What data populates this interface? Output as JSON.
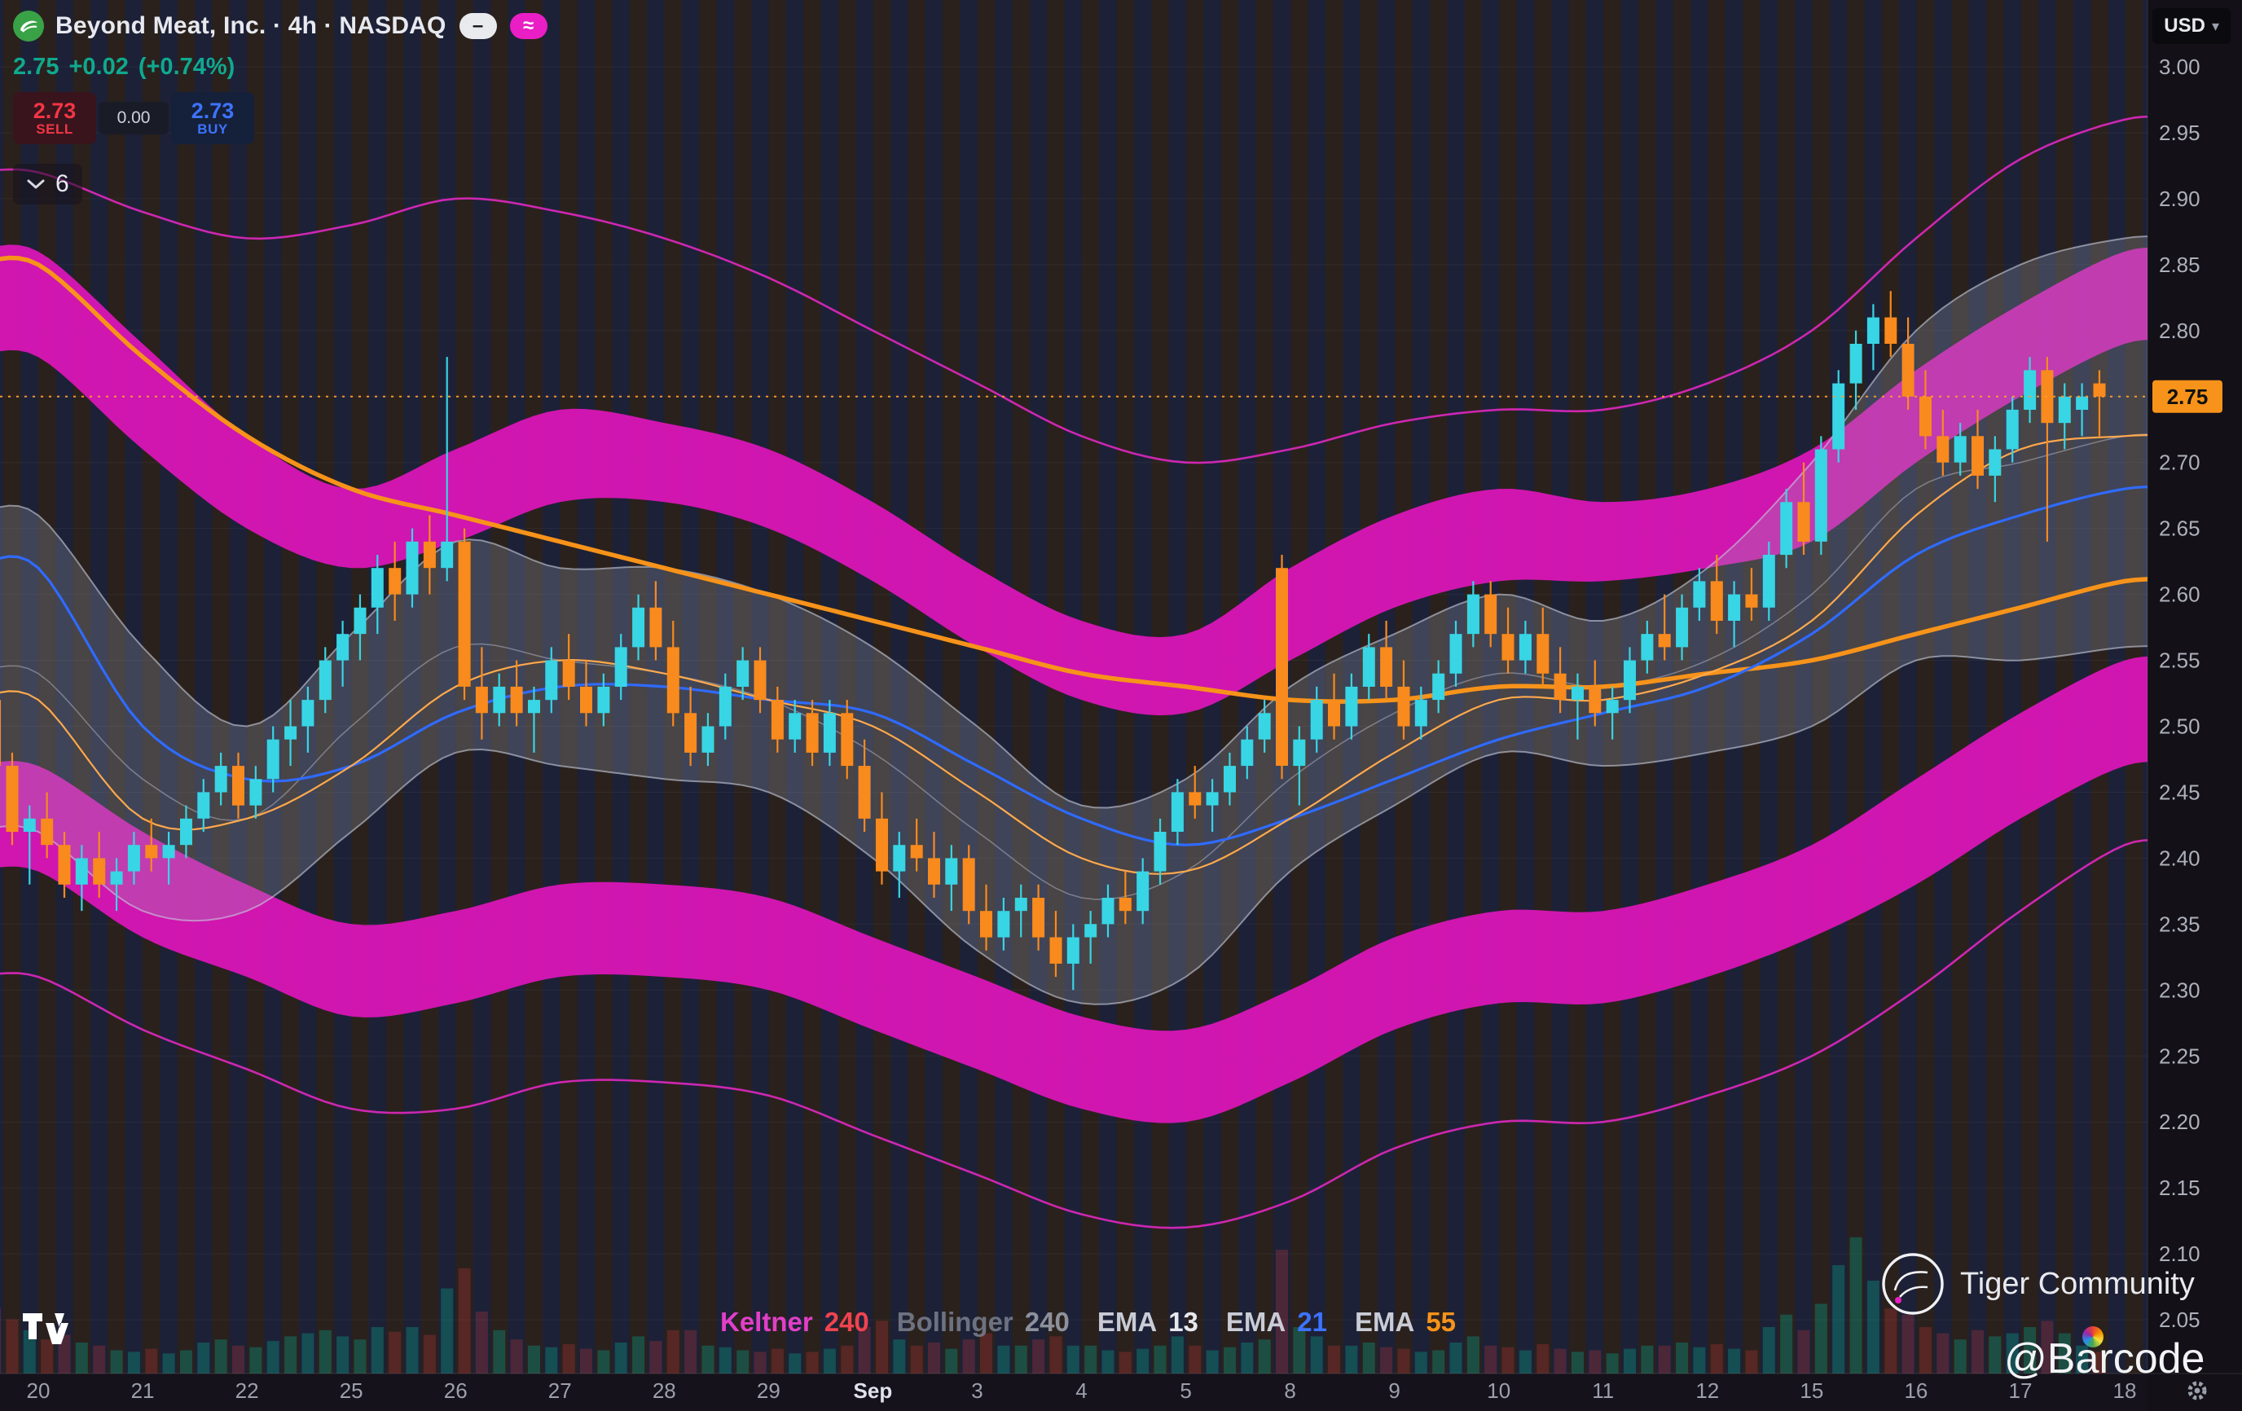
{
  "header": {
    "symbol_title": "Beyond Meat, Inc. · 4h · NASDAQ",
    "toggle_minus": "–",
    "toggle_wave": "≈",
    "price": "2.75",
    "change": "+0.02",
    "change_pct": "(+0.74%)",
    "sell_price": "2.73",
    "sell_label": "SELL",
    "spread": "0.00",
    "buy_price": "2.73",
    "buy_label": "BUY",
    "collapse_count": "6"
  },
  "axis": {
    "currency": "USD",
    "caret": "▾",
    "last_price_label": "2.75"
  },
  "legend": {
    "items": [
      {
        "label": "Keltner",
        "value": "240",
        "label_color": "#e23fc8",
        "value_color": "#f0434f"
      },
      {
        "label": "Bollinger",
        "value": "240",
        "label_color": "#6e7280",
        "value_color": "#8d919c"
      },
      {
        "label": "EMA",
        "value": "13",
        "label_color": "#c9ccd6",
        "value_color": "#e6e8ee"
      },
      {
        "label": "EMA",
        "value": "21",
        "label_color": "#c9ccd6",
        "value_color": "#3d73ff"
      },
      {
        "label": "EMA",
        "value": "55",
        "label_color": "#c9ccd6",
        "value_color": "#f7931a"
      }
    ]
  },
  "watermarks": {
    "community": "Tiger Community",
    "handle": "@Barcode"
  },
  "chart_data": {
    "type": "candlestick",
    "title": "Beyond Meat, Inc.",
    "interval": "4h",
    "exchange": "NASDAQ",
    "currency": "USD",
    "last_price": 2.75,
    "change": 0.02,
    "change_pct": 0.74,
    "current_price_line": 2.75,
    "ylim": [
      2.03,
      3.02
    ],
    "price_ticks": [
      "3.00",
      "2.95",
      "2.90",
      "2.85",
      "2.80",
      "2.75",
      "2.70",
      "2.65",
      "2.60",
      "2.55",
      "2.50",
      "2.45",
      "2.40",
      "2.35",
      "2.30",
      "2.25",
      "2.20",
      "2.15",
      "2.10",
      "2.05"
    ],
    "days": [
      "20",
      "21",
      "22",
      "25",
      "26",
      "27",
      "28",
      "29",
      "Sep",
      "3",
      "4",
      "5",
      "8",
      "9",
      "10",
      "11",
      "12",
      "15",
      "16",
      "17",
      "18"
    ],
    "bars_per_day": 6,
    "candles": [
      [
        2.52,
        2.53,
        2.46,
        2.47
      ],
      [
        2.47,
        2.48,
        2.41,
        2.42
      ],
      [
        2.42,
        2.44,
        2.38,
        2.43
      ],
      [
        2.43,
        2.45,
        2.4,
        2.41
      ],
      [
        2.41,
        2.42,
        2.37,
        2.38
      ],
      [
        2.38,
        2.41,
        2.36,
        2.4
      ],
      [
        2.4,
        2.42,
        2.37,
        2.38
      ],
      [
        2.38,
        2.4,
        2.36,
        2.39
      ],
      [
        2.39,
        2.42,
        2.38,
        2.41
      ],
      [
        2.41,
        2.43,
        2.39,
        2.4
      ],
      [
        2.4,
        2.42,
        2.38,
        2.41
      ],
      [
        2.41,
        2.44,
        2.4,
        2.43
      ],
      [
        2.43,
        2.46,
        2.42,
        2.45
      ],
      [
        2.45,
        2.48,
        2.44,
        2.47
      ],
      [
        2.47,
        2.48,
        2.43,
        2.44
      ],
      [
        2.44,
        2.47,
        2.43,
        2.46
      ],
      [
        2.46,
        2.5,
        2.45,
        2.49
      ],
      [
        2.49,
        2.52,
        2.47,
        2.5
      ],
      [
        2.5,
        2.53,
        2.48,
        2.52
      ],
      [
        2.52,
        2.56,
        2.51,
        2.55
      ],
      [
        2.55,
        2.58,
        2.53,
        2.57
      ],
      [
        2.57,
        2.6,
        2.55,
        2.59
      ],
      [
        2.59,
        2.63,
        2.57,
        2.62
      ],
      [
        2.62,
        2.64,
        2.58,
        2.6
      ],
      [
        2.6,
        2.65,
        2.59,
        2.64
      ],
      [
        2.64,
        2.66,
        2.6,
        2.62
      ],
      [
        2.62,
        2.78,
        2.61,
        2.64
      ],
      [
        2.64,
        2.65,
        2.52,
        2.53
      ],
      [
        2.53,
        2.56,
        2.49,
        2.51
      ],
      [
        2.51,
        2.54,
        2.5,
        2.53
      ],
      [
        2.53,
        2.55,
        2.5,
        2.51
      ],
      [
        2.51,
        2.53,
        2.48,
        2.52
      ],
      [
        2.52,
        2.56,
        2.51,
        2.55
      ],
      [
        2.55,
        2.57,
        2.52,
        2.53
      ],
      [
        2.53,
        2.55,
        2.5,
        2.51
      ],
      [
        2.51,
        2.54,
        2.5,
        2.53
      ],
      [
        2.53,
        2.57,
        2.52,
        2.56
      ],
      [
        2.56,
        2.6,
        2.55,
        2.59
      ],
      [
        2.59,
        2.61,
        2.55,
        2.56
      ],
      [
        2.56,
        2.58,
        2.5,
        2.51
      ],
      [
        2.51,
        2.53,
        2.47,
        2.48
      ],
      [
        2.48,
        2.51,
        2.47,
        2.5
      ],
      [
        2.5,
        2.54,
        2.49,
        2.53
      ],
      [
        2.53,
        2.56,
        2.52,
        2.55
      ],
      [
        2.55,
        2.56,
        2.51,
        2.52
      ],
      [
        2.52,
        2.53,
        2.48,
        2.49
      ],
      [
        2.49,
        2.52,
        2.48,
        2.51
      ],
      [
        2.51,
        2.52,
        2.47,
        2.48
      ],
      [
        2.48,
        2.52,
        2.47,
        2.51
      ],
      [
        2.51,
        2.52,
        2.46,
        2.47
      ],
      [
        2.47,
        2.49,
        2.42,
        2.43
      ],
      [
        2.43,
        2.45,
        2.38,
        2.39
      ],
      [
        2.39,
        2.42,
        2.37,
        2.41
      ],
      [
        2.41,
        2.43,
        2.39,
        2.4
      ],
      [
        2.4,
        2.42,
        2.37,
        2.38
      ],
      [
        2.38,
        2.41,
        2.36,
        2.4
      ],
      [
        2.4,
        2.41,
        2.35,
        2.36
      ],
      [
        2.36,
        2.38,
        2.33,
        2.34
      ],
      [
        2.34,
        2.37,
        2.33,
        2.36
      ],
      [
        2.36,
        2.38,
        2.34,
        2.37
      ],
      [
        2.37,
        2.38,
        2.33,
        2.34
      ],
      [
        2.34,
        2.36,
        2.31,
        2.32
      ],
      [
        2.32,
        2.35,
        2.3,
        2.34
      ],
      [
        2.34,
        2.36,
        2.32,
        2.35
      ],
      [
        2.35,
        2.38,
        2.34,
        2.37
      ],
      [
        2.37,
        2.39,
        2.35,
        2.36
      ],
      [
        2.36,
        2.4,
        2.35,
        2.39
      ],
      [
        2.39,
        2.43,
        2.38,
        2.42
      ],
      [
        2.42,
        2.46,
        2.41,
        2.45
      ],
      [
        2.45,
        2.47,
        2.43,
        2.44
      ],
      [
        2.44,
        2.46,
        2.42,
        2.45
      ],
      [
        2.45,
        2.48,
        2.44,
        2.47
      ],
      [
        2.47,
        2.5,
        2.46,
        2.49
      ],
      [
        2.49,
        2.52,
        2.48,
        2.51
      ],
      [
        2.62,
        2.63,
        2.46,
        2.47
      ],
      [
        2.47,
        2.5,
        2.44,
        2.49
      ],
      [
        2.49,
        2.53,
        2.48,
        2.52
      ],
      [
        2.52,
        2.54,
        2.49,
        2.5
      ],
      [
        2.5,
        2.54,
        2.49,
        2.53
      ],
      [
        2.53,
        2.57,
        2.52,
        2.56
      ],
      [
        2.56,
        2.58,
        2.52,
        2.53
      ],
      [
        2.53,
        2.55,
        2.49,
        2.5
      ],
      [
        2.5,
        2.53,
        2.49,
        2.52
      ],
      [
        2.52,
        2.55,
        2.51,
        2.54
      ],
      [
        2.54,
        2.58,
        2.53,
        2.57
      ],
      [
        2.57,
        2.61,
        2.56,
        2.6
      ],
      [
        2.6,
        2.61,
        2.56,
        2.57
      ],
      [
        2.57,
        2.59,
        2.54,
        2.55
      ],
      [
        2.55,
        2.58,
        2.54,
        2.57
      ],
      [
        2.57,
        2.59,
        2.53,
        2.54
      ],
      [
        2.54,
        2.56,
        2.51,
        2.52
      ],
      [
        2.52,
        2.54,
        2.49,
        2.53
      ],
      [
        2.53,
        2.55,
        2.5,
        2.51
      ],
      [
        2.51,
        2.53,
        2.49,
        2.52
      ],
      [
        2.52,
        2.56,
        2.51,
        2.55
      ],
      [
        2.55,
        2.58,
        2.54,
        2.57
      ],
      [
        2.57,
        2.6,
        2.55,
        2.56
      ],
      [
        2.56,
        2.6,
        2.55,
        2.59
      ],
      [
        2.59,
        2.62,
        2.58,
        2.61
      ],
      [
        2.61,
        2.63,
        2.57,
        2.58
      ],
      [
        2.58,
        2.61,
        2.56,
        2.6
      ],
      [
        2.6,
        2.62,
        2.58,
        2.59
      ],
      [
        2.59,
        2.64,
        2.58,
        2.63
      ],
      [
        2.63,
        2.68,
        2.62,
        2.67
      ],
      [
        2.67,
        2.7,
        2.63,
        2.64
      ],
      [
        2.64,
        2.72,
        2.63,
        2.71
      ],
      [
        2.71,
        2.77,
        2.7,
        2.76
      ],
      [
        2.76,
        2.8,
        2.74,
        2.79
      ],
      [
        2.79,
        2.82,
        2.77,
        2.81
      ],
      [
        2.81,
        2.83,
        2.78,
        2.79
      ],
      [
        2.79,
        2.81,
        2.74,
        2.75
      ],
      [
        2.75,
        2.77,
        2.71,
        2.72
      ],
      [
        2.72,
        2.74,
        2.69,
        2.7
      ],
      [
        2.7,
        2.73,
        2.69,
        2.72
      ],
      [
        2.72,
        2.74,
        2.68,
        2.69
      ],
      [
        2.69,
        2.72,
        2.67,
        2.71
      ],
      [
        2.71,
        2.75,
        2.7,
        2.74
      ],
      [
        2.74,
        2.78,
        2.73,
        2.77
      ],
      [
        2.77,
        2.78,
        2.64,
        2.73
      ],
      [
        2.73,
        2.76,
        2.71,
        2.75
      ],
      [
        2.74,
        2.76,
        2.72,
        2.75
      ],
      [
        2.76,
        2.77,
        2.72,
        2.75
      ]
    ],
    "volumes": [
      42,
      35,
      28,
      22,
      25,
      20,
      18,
      15,
      14,
      16,
      13,
      15,
      20,
      22,
      18,
      17,
      21,
      24,
      26,
      28,
      24,
      22,
      30,
      27,
      30,
      25,
      55,
      68,
      40,
      28,
      22,
      18,
      17,
      19,
      16,
      15,
      20,
      24,
      21,
      28,
      28,
      18,
      17,
      15,
      14,
      16,
      13,
      14,
      16,
      18,
      30,
      34,
      22,
      18,
      20,
      16,
      22,
      26,
      18,
      18,
      22,
      24,
      18,
      18,
      15,
      14,
      16,
      18,
      24,
      18,
      15,
      17,
      20,
      22,
      80,
      30,
      24,
      18,
      18,
      20,
      17,
      16,
      14,
      15,
      20,
      24,
      18,
      17,
      15,
      19,
      16,
      14,
      15,
      13,
      16,
      18,
      18,
      20,
      17,
      19,
      16,
      15,
      30,
      38,
      28,
      45,
      70,
      88,
      60,
      42,
      38,
      30,
      26,
      22,
      28,
      24,
      26,
      30,
      34,
      26,
      18,
      14
    ],
    "colors": {
      "up": "#38d5e4",
      "down": "#f98a1d",
      "keltner": "#d916b6",
      "keltner_line": "#e028c0",
      "bollinger_fill": "#9aa0b0",
      "ema13": "#ffa94d",
      "ema21": "#2f6bff",
      "ema55": "#f7931a",
      "price_line": "#ff9d2e"
    },
    "indicators": {
      "keltner_outer_upper": [
        2.92,
        2.89,
        2.87,
        2.88,
        2.9,
        2.89,
        2.87,
        2.84,
        2.8,
        2.76,
        2.72,
        2.7,
        2.71,
        2.73,
        2.74,
        2.74,
        2.76,
        2.8,
        2.87,
        2.93,
        2.96
      ],
      "keltner_upper_band_top": [
        2.86,
        2.79,
        2.72,
        2.68,
        2.71,
        2.74,
        2.73,
        2.71,
        2.67,
        2.62,
        2.58,
        2.57,
        2.62,
        2.66,
        2.68,
        2.67,
        2.68,
        2.71,
        2.77,
        2.82,
        2.86
      ],
      "keltner_upper_band_bot": [
        2.78,
        2.71,
        2.65,
        2.62,
        2.64,
        2.67,
        2.67,
        2.65,
        2.61,
        2.56,
        2.52,
        2.51,
        2.55,
        2.59,
        2.61,
        2.61,
        2.62,
        2.64,
        2.7,
        2.75,
        2.79
      ],
      "keltner_lower_band_top": [
        2.47,
        2.42,
        2.38,
        2.35,
        2.36,
        2.38,
        2.38,
        2.37,
        2.34,
        2.31,
        2.28,
        2.27,
        2.3,
        2.34,
        2.36,
        2.36,
        2.38,
        2.41,
        2.46,
        2.51,
        2.55
      ],
      "keltner_lower_band_bot": [
        2.39,
        2.34,
        2.31,
        2.28,
        2.29,
        2.31,
        2.31,
        2.3,
        2.27,
        2.24,
        2.21,
        2.2,
        2.23,
        2.27,
        2.29,
        2.29,
        2.31,
        2.34,
        2.38,
        2.43,
        2.47
      ],
      "keltner_outer_lower": [
        2.31,
        2.27,
        2.24,
        2.21,
        2.21,
        2.23,
        2.23,
        2.22,
        2.19,
        2.16,
        2.13,
        2.12,
        2.14,
        2.18,
        2.2,
        2.2,
        2.22,
        2.25,
        2.3,
        2.36,
        2.41
      ],
      "bollinger_upper": [
        2.66,
        2.56,
        2.5,
        2.57,
        2.64,
        2.62,
        2.62,
        2.6,
        2.56,
        2.5,
        2.44,
        2.46,
        2.53,
        2.57,
        2.6,
        2.58,
        2.62,
        2.7,
        2.8,
        2.85,
        2.87
      ],
      "bollinger_basis": [
        2.54,
        2.46,
        2.43,
        2.5,
        2.56,
        2.55,
        2.54,
        2.52,
        2.48,
        2.42,
        2.37,
        2.39,
        2.46,
        2.51,
        2.54,
        2.53,
        2.55,
        2.6,
        2.68,
        2.7,
        2.72
      ],
      "bollinger_lower": [
        2.42,
        2.36,
        2.36,
        2.42,
        2.48,
        2.47,
        2.46,
        2.45,
        2.4,
        2.33,
        2.29,
        2.31,
        2.39,
        2.44,
        2.48,
        2.47,
        2.48,
        2.5,
        2.55,
        2.55,
        2.56
      ],
      "ema13": [
        2.52,
        2.43,
        2.43,
        2.47,
        2.53,
        2.55,
        2.54,
        2.52,
        2.5,
        2.45,
        2.4,
        2.39,
        2.43,
        2.48,
        2.52,
        2.52,
        2.54,
        2.58,
        2.66,
        2.71,
        2.72
      ],
      "ema21": [
        2.62,
        2.5,
        2.46,
        2.47,
        2.51,
        2.53,
        2.53,
        2.52,
        2.51,
        2.47,
        2.43,
        2.41,
        2.43,
        2.46,
        2.49,
        2.51,
        2.53,
        2.57,
        2.63,
        2.66,
        2.68
      ],
      "ema55": [
        2.85,
        2.78,
        2.72,
        2.68,
        2.66,
        2.64,
        2.62,
        2.6,
        2.58,
        2.56,
        2.54,
        2.53,
        2.52,
        2.52,
        2.53,
        2.53,
        2.54,
        2.55,
        2.57,
        2.59,
        2.61
      ]
    }
  }
}
